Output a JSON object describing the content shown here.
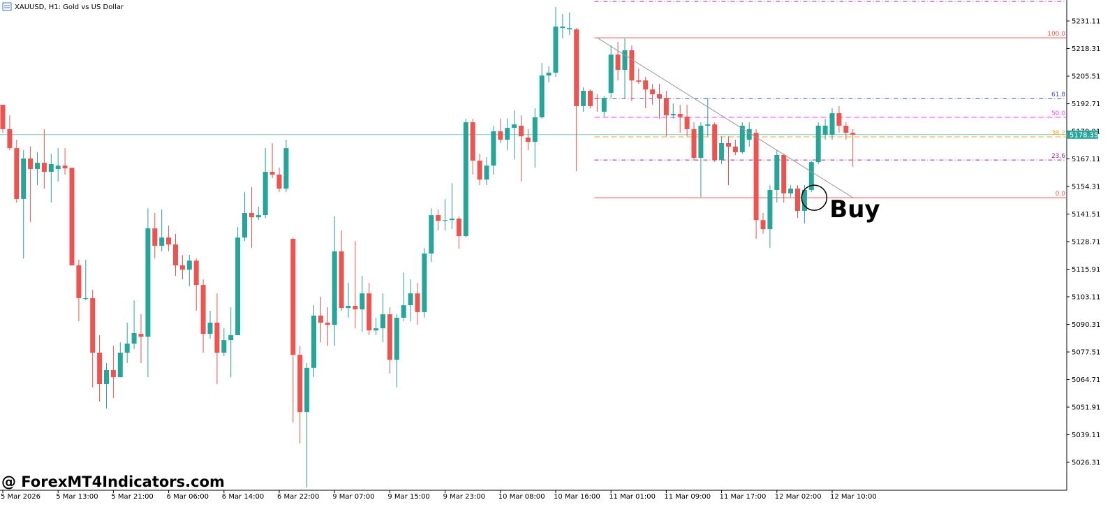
{
  "chart_data": {
    "type": "candlestick",
    "title": "XAUUSD, H1:  Gold vs US Dollar",
    "up_color": "#26a69a",
    "down_color": "#ef5350",
    "ylim": [
      5013.35,
      5240.83
    ],
    "yticks": [
      5026.31,
      5039.11,
      5051.91,
      5064.71,
      5077.51,
      5090.31,
      5103.11,
      5115.91,
      5128.71,
      5141.51,
      5154.31,
      5167.11,
      5179.91,
      5192.71,
      5205.51,
      5218.31,
      5231.11
    ],
    "last_price": 5178.35,
    "price_line_color": "#7fc6c1",
    "categories": [
      "5 Mar 2026",
      null,
      null,
      null,
      null,
      null,
      null,
      null,
      "5 Mar 13:00",
      null,
      null,
      null,
      null,
      null,
      null,
      null,
      "5 Mar 21:00",
      null,
      null,
      null,
      null,
      null,
      null,
      null,
      "6 Mar 06:00",
      null,
      null,
      null,
      null,
      null,
      null,
      null,
      "6 Mar 14:00",
      null,
      null,
      null,
      null,
      null,
      null,
      null,
      "6 Mar 22:00",
      null,
      null,
      null,
      null,
      null,
      null,
      null,
      "9 Mar 07:00",
      null,
      null,
      null,
      null,
      null,
      null,
      null,
      "9 Mar 15:00",
      null,
      null,
      null,
      null,
      null,
      null,
      null,
      "9 Mar 23:00",
      null,
      null,
      null,
      null,
      null,
      null,
      null,
      "10 Mar 08:00",
      null,
      null,
      null,
      null,
      null,
      null,
      null,
      "10 Mar 16:00",
      null,
      null,
      null,
      null,
      null,
      null,
      null,
      "11 Mar 01:00",
      null,
      null,
      null,
      null,
      null,
      null,
      null,
      "11 Mar 09:00",
      null,
      null,
      null,
      null,
      null,
      null,
      null,
      "11 Mar 17:00",
      null,
      null,
      null,
      null,
      null,
      null,
      null,
      "12 Mar 02:00",
      null,
      null,
      null,
      null,
      null,
      null,
      null,
      "12 Mar 10:00",
      null,
      null,
      null
    ],
    "ohlc": [
      [
        5192.2,
        5192.2,
        5179.2,
        5180.9
      ],
      [
        5180.9,
        5187.3,
        5171.1,
        5172.1
      ],
      [
        5172.1,
        5176.0,
        5146.8,
        5148.5
      ],
      [
        5148.5,
        5171.1,
        5120.9,
        5167.3
      ],
      [
        5167.3,
        5172.8,
        5137.8,
        5162.4
      ],
      [
        5162.4,
        5170.2,
        5154.9,
        5165.3
      ],
      [
        5165.3,
        5180.9,
        5153.3,
        5161.1
      ],
      [
        5161.1,
        5169.5,
        5146.8,
        5164.7
      ],
      [
        5162.4,
        5172.1,
        5156.6,
        5164.0
      ],
      [
        5164.0,
        5172.1,
        5159.8,
        5162.7
      ],
      [
        5163.0,
        5163.0,
        5117.7,
        5117.7
      ],
      [
        5117.7,
        5120.3,
        5091.8,
        5102.5
      ],
      [
        5102.1,
        5120.3,
        5101.5,
        5102.5
      ],
      [
        5102.5,
        5106.3,
        5061.0,
        5077.2
      ],
      [
        5077.2,
        5085.3,
        5054.5,
        5062.6
      ],
      [
        5062.6,
        5072.3,
        5051.3,
        5069.1
      ],
      [
        5069.1,
        5080.4,
        5056.1,
        5065.8
      ],
      [
        5065.8,
        5082.0,
        5065.8,
        5077.2
      ],
      [
        5077.2,
        5091.1,
        5072.3,
        5081.4
      ],
      [
        5081.4,
        5101.5,
        5078.8,
        5086.3
      ],
      [
        5085.9,
        5095.0,
        5072.3,
        5084.6
      ],
      [
        5084.6,
        5144.2,
        5065.8,
        5134.9
      ],
      [
        5134.9,
        5142.0,
        5120.9,
        5126.8
      ],
      [
        5126.8,
        5143.6,
        5124.2,
        5130.6
      ],
      [
        5130.6,
        5136.1,
        5124.2,
        5127.4
      ],
      [
        5127.4,
        5132.3,
        5112.8,
        5117.7
      ],
      [
        5117.7,
        5122.5,
        5111.2,
        5115.7
      ],
      [
        5115.7,
        5122.5,
        5108.0,
        5119.9
      ],
      [
        5119.9,
        5120.9,
        5096.6,
        5108.6
      ],
      [
        5108.6,
        5111.2,
        5077.2,
        5085.9
      ],
      [
        5085.9,
        5096.6,
        5083.7,
        5091.1
      ],
      [
        5091.1,
        5104.7,
        5062.6,
        5077.2
      ],
      [
        5077.2,
        5088.5,
        5075.6,
        5083.0
      ],
      [
        5083.0,
        5098.2,
        5065.8,
        5085.3
      ],
      [
        5085.3,
        5135.5,
        5085.3,
        5130.6
      ],
      [
        5130.6,
        5151.7,
        5129.0,
        5142.0
      ],
      [
        5142.0,
        5154.0,
        5125.8,
        5140.0
      ],
      [
        5140.0,
        5144.9,
        5138.7,
        5141.0
      ],
      [
        5141.0,
        5172.1,
        5139.7,
        5161.1
      ],
      [
        5161.1,
        5174.4,
        5158.2,
        5159.8
      ],
      [
        5159.8,
        5163.0,
        5151.7,
        5153.3
      ],
      [
        5153.3,
        5176.0,
        5151.7,
        5172.1
      ],
      [
        5130.0,
        5130.6,
        5044.8,
        5076.2
      ],
      [
        5076.2,
        5080.4,
        5035.1,
        5049.6
      ],
      [
        5049.6,
        5072.3,
        5014.6,
        5070.1
      ],
      [
        5070.1,
        5099.2,
        5065.8,
        5094.4
      ],
      [
        5094.4,
        5103.1,
        5082.0,
        5091.1
      ],
      [
        5091.1,
        5098.2,
        5080.4,
        5090.1
      ],
      [
        5090.1,
        5140.4,
        5080.4,
        5124.2
      ],
      [
        5124.2,
        5133.9,
        5096.6,
        5097.9
      ],
      [
        5097.9,
        5109.6,
        5093.4,
        5098.9
      ],
      [
        5098.9,
        5129.0,
        5088.5,
        5097.3
      ],
      [
        5097.3,
        5112.8,
        5086.9,
        5104.7
      ],
      [
        5104.7,
        5109.6,
        5085.3,
        5087.5
      ],
      [
        5087.5,
        5093.4,
        5085.3,
        5088.5
      ],
      [
        5088.5,
        5104.7,
        5082.0,
        5095.0
      ],
      [
        5095.0,
        5098.2,
        5067.5,
        5073.9
      ],
      [
        5073.9,
        5095.0,
        5061.0,
        5093.4
      ],
      [
        5093.4,
        5114.4,
        5091.8,
        5099.2
      ],
      [
        5099.2,
        5111.2,
        5091.8,
        5104.7
      ],
      [
        5104.7,
        5109.6,
        5090.1,
        5096.0
      ],
      [
        5096.0,
        5125.8,
        5093.4,
        5123.2
      ],
      [
        5123.2,
        5144.2,
        5119.3,
        5141.0
      ],
      [
        5141.0,
        5143.6,
        5133.9,
        5138.4
      ],
      [
        5138.4,
        5148.5,
        5133.9,
        5138.7
      ],
      [
        5138.7,
        5155.9,
        5134.5,
        5139.4
      ],
      [
        5139.4,
        5140.4,
        5125.5,
        5131.3
      ],
      [
        5131.3,
        5185.7,
        5130.6,
        5184.1
      ],
      [
        5184.1,
        5185.7,
        5159.8,
        5166.3
      ],
      [
        5166.3,
        5169.5,
        5154.9,
        5157.5
      ],
      [
        5157.5,
        5167.9,
        5154.9,
        5164.0
      ],
      [
        5164.0,
        5182.5,
        5159.8,
        5179.9
      ],
      [
        5179.9,
        5185.7,
        5174.4,
        5176.0
      ],
      [
        5176.0,
        5185.7,
        5171.1,
        5181.5
      ],
      [
        5181.5,
        5189.6,
        5166.9,
        5183.1
      ],
      [
        5182.5,
        5187.3,
        5156.6,
        5177.6
      ],
      [
        5177.0,
        5180.9,
        5171.1,
        5175.0
      ],
      [
        5175.0,
        5190.6,
        5163.0,
        5186.4
      ],
      [
        5186.4,
        5211.6,
        5185.7,
        5205.8
      ],
      [
        5205.8,
        5210.0,
        5202.6,
        5207.1
      ],
      [
        5207.1,
        5237.6,
        5205.2,
        5228.5
      ],
      [
        5227.8,
        5234.3,
        5223.0,
        5228.5
      ],
      [
        5227.2,
        5235.0,
        5224.6,
        5227.8
      ],
      [
        5227.2,
        5227.8,
        5161.4,
        5191.6
      ],
      [
        5191.6,
        5200.3,
        5189.0,
        5198.7
      ],
      [
        5198.7,
        5199.3,
        5190.6,
        5191.6
      ],
      [
        5195.4,
        5197.1,
        5189.0,
        5195.1
      ],
      [
        5189.0,
        5196.1,
        5186.7,
        5195.4
      ],
      [
        5197.7,
        5219.7,
        5195.4,
        5215.5
      ],
      [
        5215.5,
        5221.4,
        5203.5,
        5208.4
      ],
      [
        5208.4,
        5223.0,
        5195.4,
        5217.5
      ],
      [
        5217.5,
        5219.7,
        5193.8,
        5203.5
      ],
      [
        5203.5,
        5209.0,
        5201.9,
        5202.9
      ],
      [
        5203.5,
        5205.2,
        5190.6,
        5199.3
      ],
      [
        5199.3,
        5201.9,
        5192.2,
        5197.1
      ],
      [
        5197.1,
        5201.9,
        5185.7,
        5195.4
      ],
      [
        5195.4,
        5198.7,
        5177.6,
        5187.3
      ],
      [
        5187.3,
        5192.8,
        5185.7,
        5188.0
      ],
      [
        5188.0,
        5192.2,
        5179.2,
        5186.7
      ],
      [
        5186.7,
        5192.2,
        5177.6,
        5180.9
      ],
      [
        5180.9,
        5184.1,
        5166.3,
        5167.6
      ],
      [
        5167.6,
        5184.1,
        5149.4,
        5182.5
      ],
      [
        5182.5,
        5195.4,
        5177.6,
        5183.1
      ],
      [
        5183.1,
        5184.1,
        5165.6,
        5166.6
      ],
      [
        5166.6,
        5177.6,
        5164.7,
        5174.4
      ],
      [
        5174.4,
        5177.6,
        5154.9,
        5172.8
      ],
      [
        5172.8,
        5176.0,
        5168.9,
        5170.2
      ],
      [
        5170.2,
        5184.1,
        5169.5,
        5182.5
      ],
      [
        5176.0,
        5184.1,
        5172.8,
        5180.9
      ],
      [
        5179.2,
        5180.9,
        5130.0,
        5138.7
      ],
      [
        5138.7,
        5142.0,
        5132.3,
        5134.5
      ],
      [
        5134.5,
        5154.9,
        5125.8,
        5152.7
      ],
      [
        5152.7,
        5171.1,
        5146.8,
        5168.9
      ],
      [
        5168.9,
        5169.5,
        5146.8,
        5151.1
      ],
      [
        5151.1,
        5154.9,
        5149.4,
        5153.3
      ],
      [
        5153.3,
        5154.9,
        5139.7,
        5143.0
      ],
      [
        5143.0,
        5154.9,
        5137.1,
        5152.7
      ],
      [
        5152.7,
        5166.3,
        5151.7,
        5165.6
      ],
      [
        5165.6,
        5184.1,
        5164.7,
        5182.5
      ],
      [
        5178.3,
        5185.7,
        5176.0,
        5182.5
      ],
      [
        5178.3,
        5190.6,
        5176.0,
        5188.3
      ],
      [
        5188.3,
        5191.6,
        5179.2,
        5182.5
      ],
      [
        5182.5,
        5184.1,
        5176.0,
        5179.2
      ],
      [
        5179.2,
        5180.9,
        5163.4,
        5178.35
      ]
    ],
    "fib_start": 86,
    "fib_levels": [
      {
        "label": "100.0",
        "price": 5223.3,
        "color": "#ef5350",
        "dash": "solid"
      },
      {
        "label": "61.8",
        "price": 5195.1,
        "color": "#3f51b5",
        "dash": "dashdot"
      },
      {
        "label": "50.0",
        "price": 5186.4,
        "color": "#ff40ff",
        "dash": "dash"
      },
      {
        "label": "38.2",
        "price": 5177.3,
        "color": "#f5a623",
        "dash": "dash"
      },
      {
        "label": "23.6",
        "price": 5166.6,
        "color": "#9c27b0",
        "dash": "dashdot"
      },
      {
        "label": "0.0",
        "price": 5149.1,
        "color": "#ef5350",
        "dash": "solid"
      }
    ],
    "extra_lines": [
      {
        "price": 5240.5,
        "color": "#9c27b0"
      }
    ],
    "trendline": {
      "x": [
        86,
        123
      ],
      "y": [
        5223.3,
        5149.1
      ],
      "color": "#999999"
    },
    "signal": {
      "text": "Buy",
      "x": 117,
      "price": 5149.1
    },
    "watermark": "@ ForexMT4Indicators.com"
  }
}
